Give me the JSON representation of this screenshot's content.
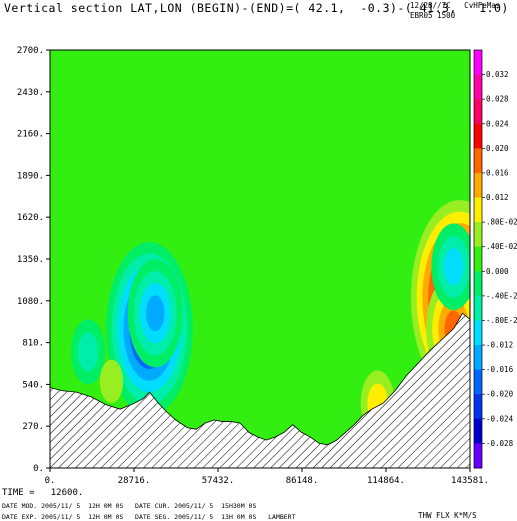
{
  "header": {
    "title": "Vertical section LAT,LON (BEGIN)-(END)=( 42.1,  -0.3)-( 41.3,   1.0)",
    "right_info_1": "12/28//7C   CvHFeMas",
    "right_info_2": "EBR05 1500"
  },
  "footer": {
    "time": "TIME =   12600.",
    "date_line_1": "DATE MOD. 2005/11/ 5  12H 0M 0S   DATE CUR. 2005/11/ 5  15H30M 0S",
    "date_line_2": "DATE EXP. 2005/11/ 5  12H 0M 0S   DATE SEG. 2005/11/ 5  13H 0M 0S   LAMBERT",
    "variable": "THW FLX K*M/S"
  },
  "colors": {
    "background_field": "#33ee11",
    "light_green": "#99ee22",
    "yellow": "#ffee00",
    "orange": "#ff9900",
    "red": "#ff0000",
    "magenta": "#ff00ff",
    "cyan": "#00ddff",
    "teal": "#00eeaa",
    "blue": "#0066ff",
    "dark_blue": "#0000cc",
    "terrain_hatch": "#000000"
  },
  "chart_data": {
    "type": "heatmap",
    "title": "Vertical section LAT,LON (BEGIN)-(END)=( 42.1,  -0.3)-( 41.3,   1.0)",
    "xlabel": "",
    "ylabel": "",
    "xlim": [
      0,
      143581
    ],
    "ylim": [
      0,
      2700
    ],
    "x_ticks": [
      0,
      28716,
      57432,
      86148,
      114864,
      143581
    ],
    "x_tick_labels": [
      "0.",
      "28716.",
      "57432.",
      "86148.",
      "114864.",
      "143581."
    ],
    "y_ticks": [
      0,
      270,
      540,
      810,
      1080,
      1350,
      1620,
      1890,
      2160,
      2430,
      2700
    ],
    "y_tick_labels": [
      "0.",
      "270.",
      "540.",
      "810.",
      "1080.",
      "1350.",
      "1620.",
      "1890.",
      "2160.",
      "2430.",
      "2700."
    ],
    "colorbar": {
      "labels": [
        "0.032",
        "0.028",
        "0.024",
        "0.020",
        "0.016",
        "0.012",
        ".80E-02",
        ".40E-02",
        "0.000",
        "-.40E-2",
        "-.80E-2",
        "-0.012",
        "-0.016",
        "-0.020",
        "-0.024",
        "-0.028"
      ],
      "colors": [
        "#ff00ff",
        "#ff00aa",
        "#ff0066",
        "#ff0000",
        "#ff6600",
        "#ffaa00",
        "#ffee00",
        "#99ee22",
        "#33ee11",
        "#00ee66",
        "#00eeaa",
        "#00ddff",
        "#00aaff",
        "#0066ff",
        "#0033ee",
        "#0000cc",
        "#6600ff"
      ]
    },
    "terrain_profile": {
      "x": [
        0,
        4000,
        9000,
        14000,
        19000,
        24000,
        29000,
        32000,
        34000,
        37000,
        40000,
        43000,
        47000,
        50000,
        53000,
        56000,
        59000,
        62000,
        65000,
        68000,
        71000,
        74000,
        77000,
        80000,
        83000,
        86000,
        89000,
        92000,
        95000,
        98000,
        101000,
        104000,
        107000,
        110000,
        114000,
        118000,
        122000,
        126000,
        130000,
        134000,
        138000,
        141000,
        143581
      ],
      "height": [
        520,
        500,
        490,
        460,
        410,
        380,
        420,
        450,
        490,
        420,
        360,
        310,
        260,
        250,
        290,
        310,
        300,
        300,
        290,
        230,
        200,
        180,
        200,
        230,
        280,
        230,
        200,
        160,
        150,
        180,
        230,
        280,
        340,
        380,
        420,
        500,
        600,
        680,
        760,
        830,
        900,
        1000,
        960
      ]
    },
    "anomalies": [
      {
        "x": 34000,
        "z": 900,
        "value": -0.028
      },
      {
        "x": 36000,
        "z": 1000,
        "value": -0.016
      },
      {
        "x": 13000,
        "z": 750,
        "value": -0.008
      },
      {
        "x": 140000,
        "z": 1100,
        "value": 0.032
      },
      {
        "x": 138000,
        "z": 900,
        "value": 0.016
      },
      {
        "x": 138000,
        "z": 1300,
        "value": -0.012
      },
      {
        "x": 21000,
        "z": 560,
        "value": 0.004
      },
      {
        "x": 112000,
        "z": 420,
        "value": 0.008
      }
    ]
  }
}
